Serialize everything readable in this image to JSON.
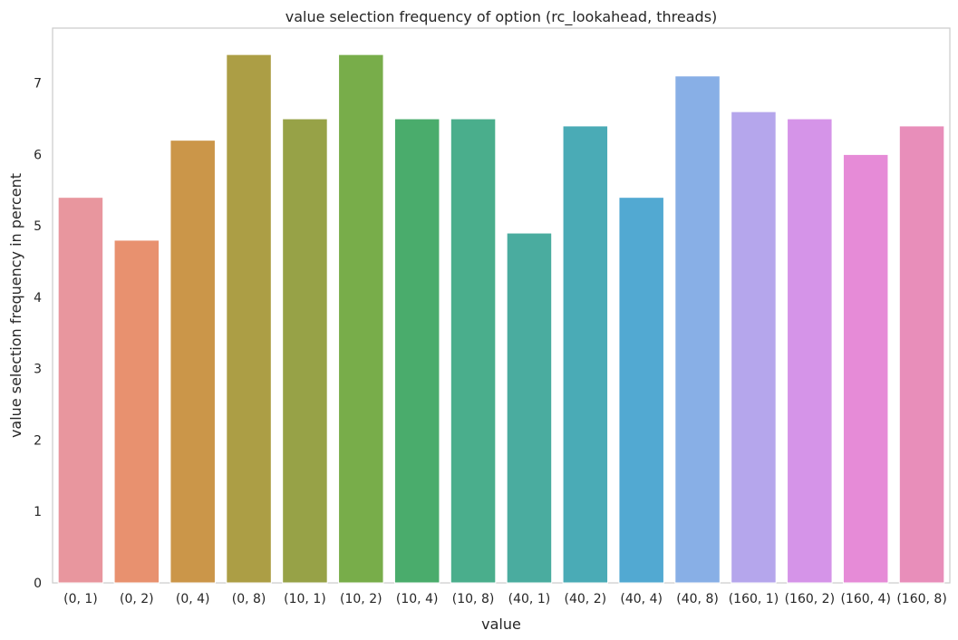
{
  "chart_data": {
    "type": "bar",
    "title": "value selection frequency of option (rc_lookahead, threads)",
    "xlabel": "value",
    "ylabel": "value selection frequency in percent",
    "categories": [
      "(0, 1)",
      "(0, 2)",
      "(0, 4)",
      "(0, 8)",
      "(10, 1)",
      "(10, 2)",
      "(10, 4)",
      "(10, 8)",
      "(40, 1)",
      "(40, 2)",
      "(40, 4)",
      "(40, 8)",
      "(160, 1)",
      "(160, 2)",
      "(160, 4)",
      "(160, 8)"
    ],
    "values": [
      5.4,
      4.8,
      6.2,
      7.4,
      6.5,
      7.4,
      6.5,
      6.5,
      4.9,
      6.4,
      5.4,
      7.1,
      6.6,
      6.5,
      6.0,
      6.4
    ],
    "colors": [
      "#e8969e",
      "#e8916f",
      "#cb9649",
      "#ac9e45",
      "#97a247",
      "#78ad4a",
      "#4aac6c",
      "#4aae8c",
      "#4aac9f",
      "#4aabb6",
      "#52a9d2",
      "#88afe6",
      "#b5a6ec",
      "#d594e8",
      "#e68bd7",
      "#e88eba"
    ],
    "yticks": [
      0,
      1,
      2,
      3,
      4,
      5,
      6,
      7
    ],
    "ylim": [
      0,
      7.77
    ],
    "grid": false,
    "legend": "none"
  }
}
